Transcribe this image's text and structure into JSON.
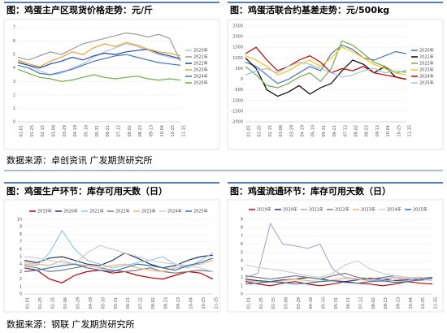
{
  "chart_data": [
    {
      "type": "line",
      "title": "图：鸡蛋主产区现货价格走势：元/斤",
      "legend": "right",
      "categories": [
        "01-01",
        "01-25",
        "02-15",
        "03-08",
        "03-29",
        "04-19",
        "05-10",
        "05-31",
        "06-21",
        "07-12",
        "08-02",
        "08-23",
        "09-13",
        "10-04",
        "10-25",
        "11-15"
      ],
      "ylim": [
        0,
        7
      ],
      "yticks": [
        0,
        1,
        2,
        3,
        4,
        5,
        6,
        7
      ],
      "series": [
        {
          "name": "2020年",
          "color": "#a9c4e8",
          "values": [
            4.5,
            4.2,
            3.8,
            3.5,
            3.6,
            4.0,
            4.3,
            4.8,
            5.2,
            5.5,
            5.8,
            5.6,
            5.3,
            5.0,
            4.8,
            4.6
          ]
        },
        {
          "name": "2021年",
          "color": "#999999",
          "values": [
            4.8,
            4.6,
            4.9,
            5.2,
            5.0,
            5.4,
            5.8,
            6.0,
            6.2,
            6.4,
            6.6,
            6.5,
            6.3,
            6.5,
            6.2,
            4.5
          ]
        },
        {
          "name": "2022年",
          "color": "#1f4e9a",
          "values": [
            4.4,
            4.2,
            4.0,
            4.3,
            4.5,
            4.8,
            4.6,
            4.9,
            5.1,
            5.0,
            5.2,
            5.3,
            5.4,
            5.1,
            4.9,
            4.7
          ]
        },
        {
          "name": "2023年",
          "color": "#f0a030",
          "values": [
            4.6,
            4.3,
            4.1,
            4.5,
            4.8,
            5.2,
            5.0,
            5.5,
            5.8,
            5.6,
            5.9,
            5.7,
            5.4,
            5.2,
            5.1,
            4.9
          ]
        },
        {
          "name": "2024年",
          "color": "#4472c4",
          "values": [
            4.2,
            4.0,
            3.6,
            3.5,
            3.7,
            3.9,
            4.2,
            4.5,
            4.7,
            4.9,
            5.0,
            4.8,
            4.6,
            4.4,
            4.3,
            4.2
          ]
        },
        {
          "name": "2025年",
          "color": "#70ad47",
          "values": [
            3.9,
            3.6,
            3.3,
            3.2,
            3.0,
            3.1,
            3.3,
            3.5,
            3.3,
            3.2,
            3.3,
            3.4,
            3.2,
            3.1,
            3.2,
            3.1
          ]
        }
      ]
    },
    {
      "type": "line",
      "title": "图：鸡蛋活联合约基差走势：元/500kg",
      "legend": "right",
      "categories": [
        "01-01",
        "01-25",
        "02-15",
        "03-08",
        "03-29",
        "04-19",
        "05-10",
        "05-31",
        "06-21",
        "07-12",
        "08-02",
        "08-23",
        "09-13",
        "10-04",
        "10-25",
        "11-15"
      ],
      "ylim": [
        -2000,
        2500
      ],
      "yticks": [
        -2000,
        -1500,
        -1000,
        -500,
        0,
        500,
        1000,
        1500,
        2000,
        2500
      ],
      "series": [
        {
          "name": "2020年",
          "color": "#4472c4",
          "values": [
            800,
            600,
            200,
            -200,
            0,
            300,
            600,
            400,
            1200,
            1600,
            1400,
            1000,
            900,
            1100,
            1300,
            1200
          ]
        },
        {
          "name": "2021年",
          "color": "#000000",
          "values": [
            1000,
            500,
            -500,
            -800,
            -600,
            -300,
            -700,
            -400,
            -200,
            400,
            900,
            700,
            300,
            600,
            100,
            0
          ]
        },
        {
          "name": "2022年",
          "color": "#70ad47",
          "values": [
            600,
            200,
            -300,
            -400,
            -200,
            100,
            300,
            -100,
            500,
            1800,
            1600,
            1200,
            800,
            600,
            300,
            400
          ]
        },
        {
          "name": "2023年",
          "color": "#ffc000",
          "values": [
            1100,
            900,
            600,
            200,
            400,
            700,
            900,
            600,
            1000,
            1500,
            1300,
            1000,
            700,
            500,
            300,
            200
          ]
        },
        {
          "name": "2024年",
          "color": "#c00000",
          "values": [
            1200,
            1500,
            900,
            400,
            600,
            900,
            1100,
            800,
            300,
            500,
            400,
            600,
            300,
            200,
            100,
            0
          ]
        },
        {
          "name": "2025年",
          "color": "#9dc3e6",
          "values": [
            200,
            400,
            500,
            300,
            600,
            800,
            700,
            500,
            300,
            100,
            200,
            400,
            500,
            300,
            400,
            300
          ]
        }
      ]
    },
    {
      "type": "line",
      "title": "图：鸡蛋生产环节：库存可用天数（日）",
      "legend": "top",
      "categories": [
        "01-01",
        "01-25",
        "02-15",
        "03-08",
        "03-29",
        "04-19",
        "05-10",
        "05-31",
        "06-21",
        "07-12",
        "08-02",
        "08-23",
        "09-13",
        "10-04",
        "10-25",
        "11-15"
      ],
      "ylim": [
        0,
        10
      ],
      "yticks": [
        0,
        1,
        2,
        3,
        4,
        5,
        6,
        7,
        8,
        9,
        10
      ],
      "series": [
        {
          "name": "2019年",
          "color": "#c00000",
          "values": [
            3.5,
            3.2,
            2.0,
            1.5,
            2.5,
            3.0,
            3.2,
            2.8,
            3.0,
            2.5,
            2.2,
            2.0,
            2.5,
            3.0,
            2.8,
            2.0
          ]
        },
        {
          "name": "2020年",
          "color": "#1f3864",
          "values": [
            4.5,
            4.2,
            4.8,
            5.0,
            4.5,
            4.0,
            3.8,
            4.5,
            5.5,
            4.8,
            4.0,
            3.5,
            3.8,
            4.5,
            5.0,
            5.2
          ]
        },
        {
          "name": "2021年",
          "color": "#9dc3e6",
          "values": [
            4.0,
            3.8,
            5.5,
            8.5,
            6.0,
            4.5,
            4.0,
            3.5,
            3.8,
            4.2,
            4.5,
            5.0,
            4.0,
            3.5,
            4.5,
            5.5
          ]
        },
        {
          "name": "2022年",
          "color": "#7f7f7f",
          "values": [
            3.8,
            3.5,
            3.0,
            3.2,
            3.5,
            3.8,
            3.5,
            3.2,
            3.0,
            3.2,
            3.5,
            3.0,
            2.8,
            3.0,
            3.2,
            3.0
          ]
        },
        {
          "name": "2023年",
          "color": "#f4b183",
          "values": [
            4.2,
            4.0,
            3.8,
            4.5,
            4.0,
            3.8,
            3.5,
            3.8,
            4.0,
            3.5,
            3.2,
            3.0,
            3.5,
            3.8,
            4.0,
            4.5
          ]
        },
        {
          "name": "2024年",
          "color": "#d0cece",
          "values": [
            5.0,
            4.8,
            4.5,
            4.2,
            4.0,
            5.5,
            6.5,
            6.0,
            5.5,
            5.0,
            4.5,
            4.2,
            4.0,
            3.8,
            3.5,
            3.0
          ]
        },
        {
          "name": "2025年",
          "color": "#2e75b6",
          "values": [
            3.0,
            3.2,
            3.5,
            3.8,
            4.0,
            3.5,
            3.2,
            3.0,
            3.5,
            4.0,
            3.8,
            3.5,
            3.2,
            3.8,
            4.2,
            4.8
          ]
        }
      ]
    },
    {
      "type": "line",
      "title": "图：鸡蛋流通环节：库存可用天数（日）",
      "legend": "top",
      "categories": [
        "01-01",
        "01-25",
        "02-15",
        "03-08",
        "03-29",
        "04-19",
        "05-10",
        "05-31",
        "06-21",
        "07-12",
        "08-02",
        "08-23",
        "09-13",
        "10-04",
        "10-25",
        "11-15"
      ],
      "ylim": [
        0,
        9
      ],
      "yticks": [
        0,
        1,
        2,
        3,
        4,
        5,
        6,
        7,
        8,
        9
      ],
      "series": [
        {
          "name": "2019年",
          "color": "#c00000",
          "values": [
            1.5,
            1.2,
            1.0,
            1.3,
            1.5,
            1.2,
            1.0,
            1.2,
            1.5,
            1.3,
            1.2,
            1.0,
            1.2,
            1.5,
            1.3,
            1.2
          ]
        },
        {
          "name": "2020年",
          "color": "#1f3864",
          "values": [
            1.8,
            1.6,
            1.5,
            1.7,
            1.8,
            2.0,
            1.8,
            1.6,
            1.5,
            1.7,
            1.9,
            1.8,
            1.6,
            1.7,
            1.8,
            1.9
          ]
        },
        {
          "name": "2021年",
          "color": "#b4a7d6",
          "values": [
            2.0,
            2.5,
            8.5,
            6.0,
            5.8,
            5.5,
            6.0,
            3.0,
            2.0,
            1.8,
            1.6,
            1.8,
            2.0,
            1.8,
            1.6,
            1.8
          ]
        },
        {
          "name": "2022年",
          "color": "#7f7f7f",
          "values": [
            2.2,
            2.0,
            1.8,
            2.0,
            2.2,
            2.0,
            1.8,
            2.2,
            2.5,
            2.0,
            1.8,
            2.0,
            2.2,
            2.0,
            1.9,
            2.0
          ]
        },
        {
          "name": "2023年",
          "color": "#f4b183",
          "values": [
            1.6,
            1.5,
            1.4,
            1.6,
            1.8,
            1.6,
            1.5,
            1.7,
            1.9,
            1.8,
            1.6,
            1.5,
            1.7,
            1.9,
            2.0,
            1.8
          ]
        },
        {
          "name": "2024年",
          "color": "#d0cece",
          "values": [
            3.5,
            3.2,
            3.0,
            2.8,
            2.5,
            2.2,
            2.0,
            2.5,
            3.5,
            4.0,
            3.0,
            2.5,
            2.2,
            2.0,
            1.8,
            1.6
          ]
        },
        {
          "name": "2025年",
          "color": "#2e75b6",
          "values": [
            1.2,
            1.3,
            1.5,
            1.4,
            1.2,
            1.3,
            1.5,
            1.6,
            1.4,
            1.3,
            1.5,
            1.6,
            1.4,
            1.5,
            1.7,
            2.0
          ]
        }
      ]
    }
  ],
  "sources": [
    "数据来源：卓创资讯 广发期货研究所",
    "数据来源：钢联 广发期货研究所"
  ]
}
